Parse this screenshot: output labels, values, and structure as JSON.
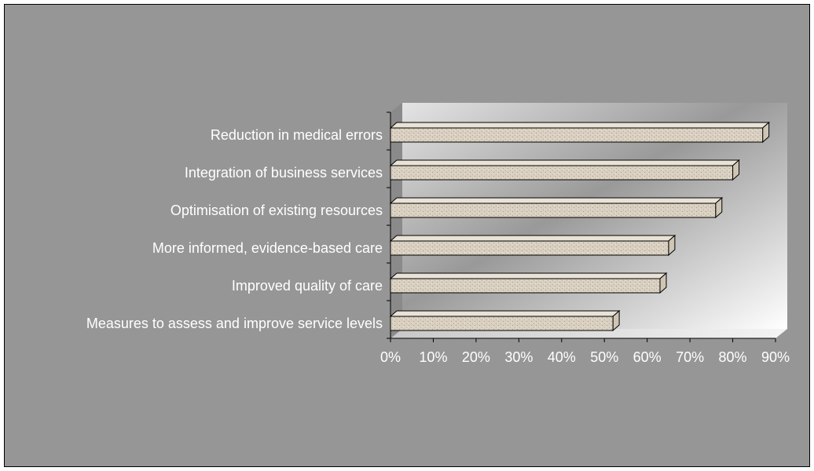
{
  "chart_data": {
    "type": "bar",
    "orientation": "horizontal",
    "title": "",
    "xlabel": "",
    "ylabel": "",
    "categories": [
      "Reduction in medical errors",
      "Integration of business services",
      "Optimisation of existing resources",
      "More informed, evidence-based care",
      "Improved quality of care",
      "Measures to assess and improve service levels"
    ],
    "values": [
      0.87,
      0.8,
      0.76,
      0.65,
      0.63,
      0.52
    ],
    "xlim": [
      0,
      0.9
    ],
    "x_ticks": [
      "0%",
      "10%",
      "20%",
      "30%",
      "40%",
      "50%",
      "60%",
      "70%",
      "80%",
      "90%"
    ],
    "grid": false,
    "legend": "none",
    "colors": {
      "chart_area": "#969696",
      "plot_wall": "#ffffff",
      "bar_fill": "#d9d0c1",
      "bar_speckle": "#b8ab98",
      "bar_outline": "#000000",
      "text": "#ffffff"
    }
  }
}
